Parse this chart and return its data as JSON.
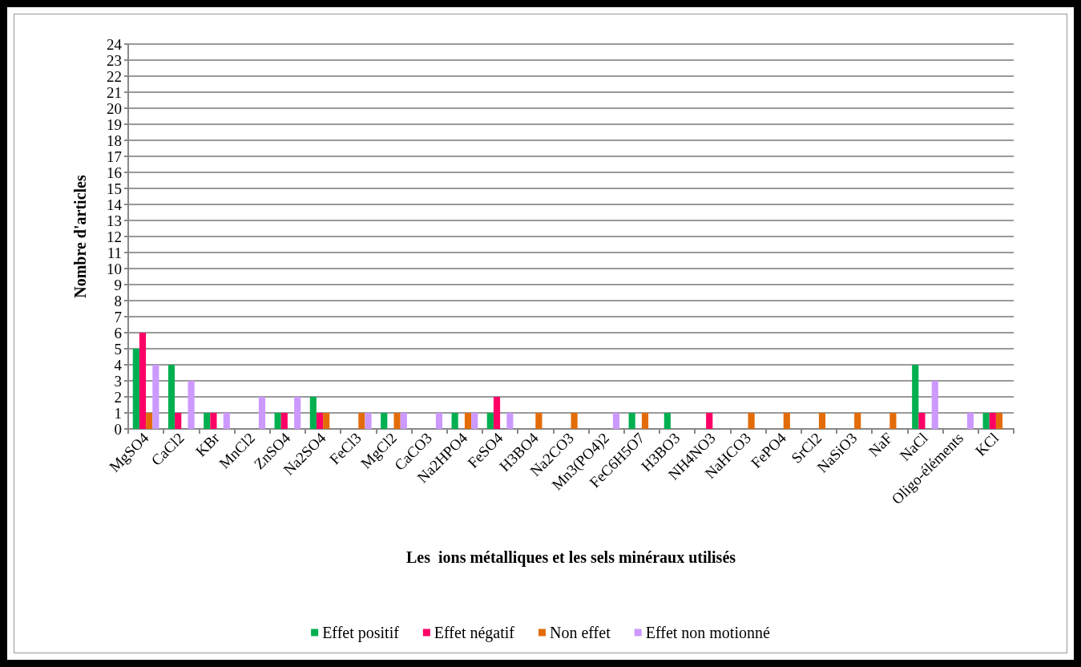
{
  "chart_data": {
    "type": "bar",
    "xlabel": "Les  ions métalliques et les sels minéraux utilisés",
    "ylabel": "Nombre d'articles",
    "categories": [
      "MgSO4",
      "CaCl2",
      "KBr",
      "MnCl2",
      "ZnSO4",
      "Na2SO4",
      "FeCl3",
      "MgCl2",
      "CaCO3",
      "Na2HPO4",
      "FeSO4",
      "H3BO4",
      "Na2CO3",
      "Mn3(PO4)2",
      "FeC6H5O7",
      "H3BO3",
      "NH4NO3",
      "NaHCO3",
      "FePO4",
      "SrCl2",
      "NaSiO3",
      "NaF",
      "NaCl",
      "Oligo-éléments",
      "KCl"
    ],
    "series": [
      {
        "name": "Effet positif",
        "color": "#00b050",
        "values": [
          5,
          4,
          1,
          0,
          1,
          2,
          0,
          1,
          0,
          1,
          1,
          0,
          0,
          0,
          1,
          1,
          0,
          0,
          0,
          0,
          0,
          0,
          4,
          0,
          1
        ]
      },
      {
        "name": "Effet négatif",
        "color": "#ff0066",
        "values": [
          6,
          1,
          1,
          0,
          1,
          1,
          0,
          0,
          0,
          0,
          2,
          0,
          0,
          0,
          0,
          0,
          1,
          0,
          0,
          0,
          0,
          0,
          1,
          0,
          1
        ]
      },
      {
        "name": "Non effet",
        "color": "#e36c09",
        "values": [
          1,
          0,
          0,
          0,
          0,
          1,
          1,
          1,
          0,
          1,
          0,
          1,
          1,
          0,
          1,
          0,
          0,
          1,
          1,
          1,
          1,
          1,
          0,
          0,
          1
        ]
      },
      {
        "name": "Effet non motionné",
        "color": "#cc99ff",
        "values": [
          4,
          3,
          1,
          2,
          2,
          0,
          1,
          1,
          1,
          1,
          1,
          0,
          0,
          1,
          0,
          0,
          0,
          0,
          0,
          0,
          0,
          0,
          3,
          1,
          0
        ]
      }
    ],
    "ylim": [
      0,
      24
    ],
    "yticks": [
      0,
      1,
      2,
      3,
      4,
      5,
      6,
      7,
      8,
      9,
      10,
      11,
      12,
      13,
      14,
      15,
      16,
      17,
      18,
      19,
      20,
      21,
      22,
      23,
      24
    ],
    "grid": "y",
    "legend": "bottom"
  }
}
